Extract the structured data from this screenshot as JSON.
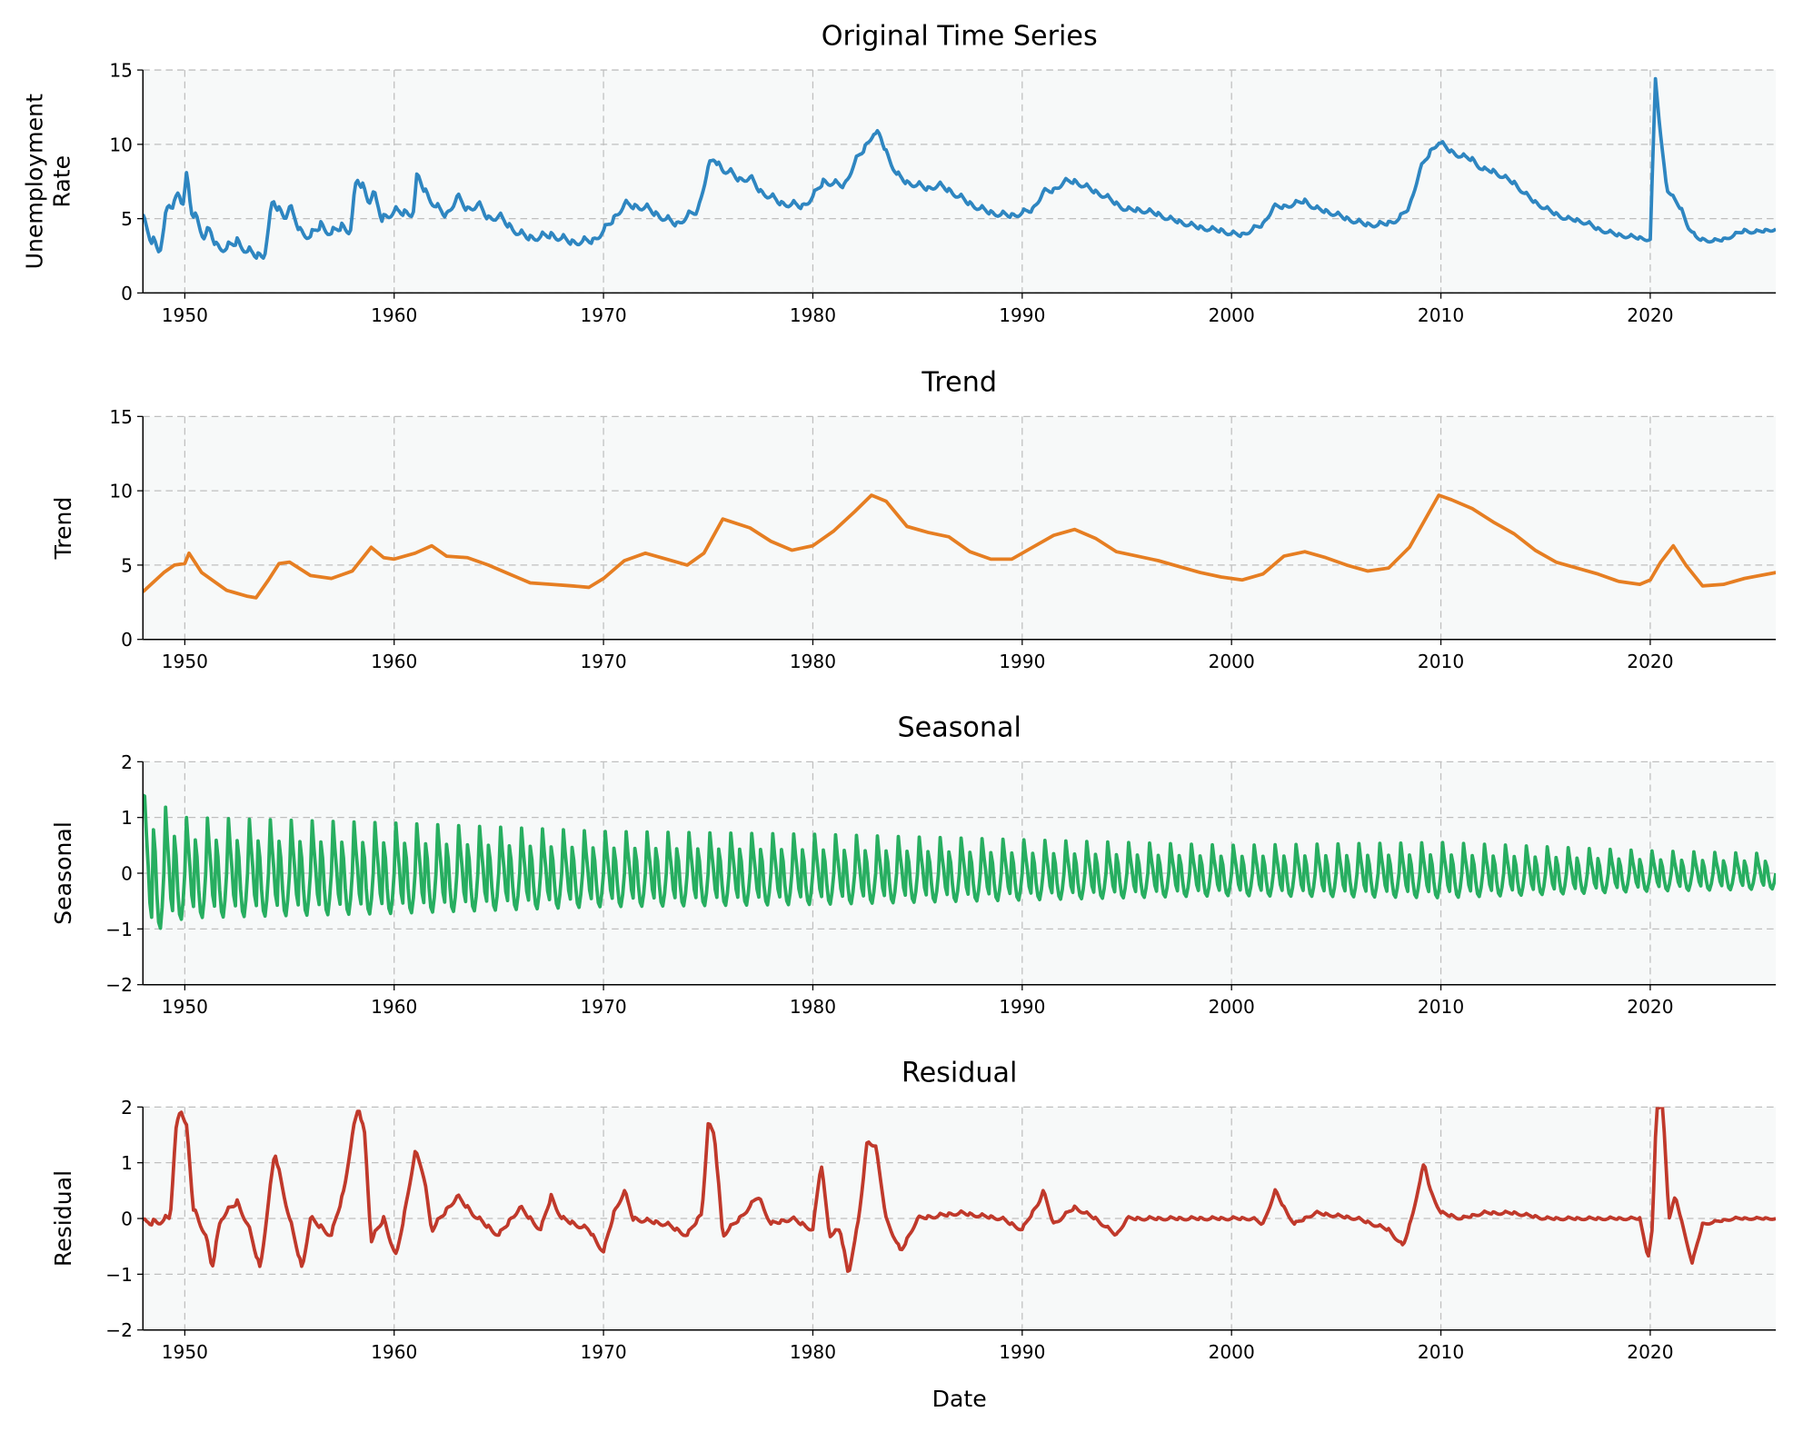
{
  "chart_data": [
    {
      "type": "line",
      "title": "Original Time Series",
      "xlabel": "",
      "ylabel": "Unemployment\nRate",
      "xlim": [
        1948,
        2026
      ],
      "ylim": [
        0,
        15
      ],
      "yticks": [
        0,
        5,
        10,
        15
      ],
      "xticks": [
        1950,
        1960,
        1970,
        1980,
        1990,
        2000,
        2010,
        2020
      ],
      "grid": true,
      "color": "#2e86c1",
      "x": [
        1948.0,
        1948.3,
        1948.8,
        1949.2,
        1949.5,
        1949.7,
        1949.9,
        1950.1,
        1950.3,
        1950.6,
        1950.9,
        1951.2,
        1951.5,
        1952,
        1952.5,
        1953,
        1953.5,
        1953.8,
        1954.2,
        1954.5,
        1954.8,
        1955,
        1955.5,
        1956,
        1956.5,
        1957,
        1957.5,
        1957.9,
        1958.2,
        1958.5,
        1958.8,
        1959,
        1959.4,
        1960,
        1960.5,
        1960.9,
        1961.1,
        1961.5,
        1962,
        1962.5,
        1963,
        1963.5,
        1964,
        1964.5,
        1965,
        1965.5,
        1966,
        1966.5,
        1967,
        1967.5,
        1968,
        1968.5,
        1969,
        1969.5,
        1970,
        1970.5,
        1971,
        1971.5,
        1972,
        1972.5,
        1973,
        1973.5,
        1974,
        1974.5,
        1975,
        1975.3,
        1975.7,
        1976,
        1976.5,
        1977,
        1977.5,
        1978,
        1978.5,
        1979,
        1979.5,
        1980,
        1980.5,
        1981,
        1981.5,
        1982,
        1982.5,
        1982.9,
        1983.2,
        1983.5,
        1984,
        1984.5,
        1985,
        1985.5,
        1986,
        1986.5,
        1987,
        1987.5,
        1988,
        1988.5,
        1989,
        1989.5,
        1990,
        1990.5,
        1991,
        1991.5,
        1992,
        1992.5,
        1993,
        1993.5,
        1994,
        1994.5,
        1995,
        1995.5,
        1996,
        1996.5,
        1997,
        1997.5,
        1998,
        1998.5,
        1999,
        1999.5,
        2000,
        2000.5,
        2001,
        2001.5,
        2002,
        2002.5,
        2003,
        2003.5,
        2004,
        2004.5,
        2005,
        2005.5,
        2006,
        2006.5,
        2007,
        2007.5,
        2008,
        2008.5,
        2009,
        2009.5,
        2009.9,
        2010.5,
        2011,
        2011.5,
        2012,
        2012.5,
        2013,
        2013.5,
        2014,
        2014.5,
        2015,
        2015.5,
        2016,
        2016.5,
        2017,
        2017.5,
        2018,
        2018.5,
        2019,
        2019.5,
        2020.0,
        2020.25,
        2020.5,
        2020.8,
        2021.2,
        2021.5,
        2021.8,
        2022.2,
        2022.5,
        2023,
        2023.5,
        2024,
        2024.5,
        2025,
        2025.5,
        2026
      ],
      "y": [
        4.8,
        3.8,
        3.0,
        5.8,
        6.0,
        7.0,
        6.0,
        7.9,
        5.5,
        5.0,
        3.8,
        4.2,
        3.2,
        3.0,
        3.5,
        2.8,
        2.5,
        2.6,
        6.2,
        5.6,
        5.2,
        5.8,
        4.2,
        3.8,
        4.6,
        4.0,
        4.5,
        4.2,
        7.6,
        7.2,
        6.2,
        6.8,
        5.0,
        5.5,
        5.4,
        5.4,
        7.9,
        6.8,
        5.8,
        5.2,
        6.5,
        5.6,
        6.0,
        5.0,
        5.2,
        4.5,
        4.0,
        3.7,
        3.8,
        3.9,
        3.7,
        3.4,
        3.5,
        3.5,
        4.2,
        5.0,
        6.0,
        5.8,
        5.8,
        5.3,
        5.0,
        4.6,
        5.2,
        5.5,
        8.5,
        9.0,
        8.3,
        8.2,
        7.6,
        7.8,
        6.8,
        6.5,
        6.0,
        6.0,
        5.8,
        6.5,
        7.5,
        7.4,
        7.2,
        8.8,
        9.8,
        10.8,
        10.6,
        9.5,
        8.0,
        7.4,
        7.3,
        7.0,
        7.3,
        6.9,
        6.5,
        6.0,
        5.7,
        5.4,
        5.3,
        5.2,
        5.4,
        5.6,
        6.8,
        6.9,
        7.5,
        7.5,
        7.2,
        6.8,
        6.5,
        6.0,
        5.6,
        5.6,
        5.5,
        5.3,
        5.0,
        4.8,
        4.6,
        4.4,
        4.3,
        4.2,
        4.0,
        3.9,
        4.3,
        4.6,
        5.8,
        5.8,
        6.0,
        6.2,
        5.7,
        5.5,
        5.3,
        5.0,
        4.8,
        4.6,
        4.6,
        4.7,
        5.0,
        5.8,
        8.3,
        9.5,
        10.2,
        9.5,
        9.2,
        9.0,
        8.3,
        8.2,
        7.8,
        7.4,
        6.7,
        6.1,
        5.7,
        5.3,
        5.0,
        4.9,
        4.7,
        4.3,
        4.1,
        3.9,
        3.8,
        3.7,
        3.6,
        14.4,
        10.5,
        7.0,
        6.2,
        5.6,
        4.5,
        3.7,
        3.6,
        3.5,
        3.6,
        3.9,
        4.2,
        4.1,
        4.2,
        4.3
      ]
    },
    {
      "type": "line",
      "title": "Trend",
      "ylabel": "Trend",
      "xlim": [
        1948,
        2026
      ],
      "ylim": [
        0,
        15
      ],
      "yticks": [
        0,
        5,
        10,
        15
      ],
      "xticks": [
        1950,
        1960,
        1970,
        1980,
        1990,
        2000,
        2010,
        2020
      ],
      "grid": true,
      "color": "#e67e22",
      "x": [
        1948,
        1949,
        1949.5,
        1950,
        1950.2,
        1950.8,
        1951.5,
        1952,
        1953,
        1953.4,
        1954,
        1954.5,
        1955,
        1956,
        1957,
        1958,
        1958.9,
        1959.5,
        1960,
        1961,
        1961.8,
        1962.5,
        1963.5,
        1964.5,
        1965.5,
        1966.5,
        1967.5,
        1968.5,
        1969.3,
        1970,
        1971,
        1972,
        1973,
        1974,
        1974.8,
        1975.7,
        1977,
        1978,
        1979,
        1980,
        1981,
        1982,
        1982.8,
        1983.5,
        1984.5,
        1985.5,
        1986.5,
        1987.5,
        1988.5,
        1989.5,
        1990.5,
        1991.5,
        1992.5,
        1993.5,
        1994.5,
        1995.5,
        1996.5,
        1997.5,
        1998.5,
        1999.5,
        2000.5,
        2001.5,
        2002.5,
        2003.5,
        2004.5,
        2005.5,
        2006.5,
        2007.5,
        2008.5,
        2009.9,
        2010.5,
        2011.5,
        2012.5,
        2013.5,
        2014.5,
        2015.5,
        2016.5,
        2017.5,
        2018.5,
        2019.5,
        2020,
        2020.5,
        2021.1,
        2021.7,
        2022.5,
        2023.5,
        2024.5,
        2026
      ],
      "y": [
        3.2,
        4.5,
        5.0,
        5.1,
        5.8,
        4.5,
        3.8,
        3.3,
        2.9,
        2.8,
        4.0,
        5.1,
        5.2,
        4.3,
        4.1,
        4.6,
        6.2,
        5.5,
        5.4,
        5.8,
        6.3,
        5.6,
        5.5,
        5.0,
        4.4,
        3.8,
        3.7,
        3.6,
        3.5,
        4.1,
        5.3,
        5.8,
        5.4,
        5.0,
        5.8,
        8.1,
        7.5,
        6.6,
        6.0,
        6.3,
        7.3,
        8.6,
        9.7,
        9.3,
        7.6,
        7.2,
        6.9,
        5.9,
        5.4,
        5.4,
        6.2,
        7.0,
        7.4,
        6.8,
        5.9,
        5.6,
        5.3,
        4.9,
        4.5,
        4.2,
        4.0,
        4.4,
        5.6,
        5.9,
        5.5,
        5.0,
        4.6,
        4.8,
        6.2,
        9.7,
        9.4,
        8.8,
        7.9,
        7.1,
        6.0,
        5.2,
        4.8,
        4.4,
        3.9,
        3.7,
        4.0,
        5.2,
        6.3,
        5.0,
        3.6,
        3.7,
        4.1,
        4.5
      ]
    },
    {
      "type": "line",
      "title": "Seasonal",
      "ylabel": "Seasonal",
      "xlim": [
        1948,
        2026
      ],
      "ylim": [
        -2,
        2
      ],
      "yticks": [
        -2,
        -1,
        0,
        1,
        2
      ],
      "xticks": [
        1950,
        1960,
        1970,
        1980,
        1990,
        2000,
        2010,
        2020
      ],
      "grid": true,
      "color": "#27ae60",
      "monthly_pattern": [
        1.0,
        0.5,
        0.1,
        -0.4,
        -0.6,
        0.6,
        0.3,
        -0.3,
        -0.7,
        -0.8,
        -0.5,
        0.0
      ],
      "amplitude_years": [
        1948,
        1950,
        1960,
        1970,
        1980,
        1990,
        2000,
        2010,
        2020,
        2026
      ],
      "amplitude": [
        1.4,
        1.0,
        0.9,
        0.75,
        0.7,
        0.6,
        0.5,
        0.55,
        0.4,
        0.35
      ]
    },
    {
      "type": "line",
      "title": "Residual",
      "xlabel": "Date",
      "ylabel": "Residual",
      "xlim": [
        1948,
        2026
      ],
      "ylim": [
        -2,
        2
      ],
      "yticks": [
        -2,
        -1,
        0,
        1,
        2
      ],
      "xticks": [
        1950,
        1960,
        1970,
        1980,
        1990,
        2000,
        2010,
        2020
      ],
      "grid": true,
      "color": "#c0392b",
      "x": [
        1948,
        1949.3,
        1949.6,
        1949.8,
        1950.1,
        1950.4,
        1951,
        1951.3,
        1951.7,
        1952.5,
        1953,
        1953.6,
        1954.0,
        1954.3,
        1954.7,
        1955,
        1955.6,
        1956,
        1957,
        1957.6,
        1958,
        1958.3,
        1958.6,
        1958.9,
        1959.5,
        1960.1,
        1960.5,
        1961,
        1961.4,
        1961.8,
        1963,
        1964,
        1965,
        1966,
        1967,
        1967.5,
        1968,
        1969.3,
        1970,
        1970.5,
        1971,
        1971.4,
        1973,
        1974,
        1974.7,
        1975,
        1975.3,
        1975.7,
        1976.5,
        1977.4,
        1978,
        1979,
        1980,
        1980.4,
        1980.8,
        1981.3,
        1981.7,
        1982.2,
        1982.6,
        1983,
        1983.5,
        1984.2,
        1985,
        1987,
        1989,
        1990,
        1990.8,
        1991,
        1991.5,
        1992.5,
        1993.5,
        1994.5,
        1995,
        1997,
        1999,
        2001,
        2001.5,
        2002.1,
        2002.5,
        2003,
        2004,
        2006,
        2007.5,
        2008.2,
        2008.6,
        2009.2,
        2009.5,
        2010,
        2011,
        2012,
        2013.5,
        2015,
        2017,
        2019.5,
        2019.9,
        2020.1,
        2020.3,
        2020.6,
        2020.9,
        2021.2,
        2021.6,
        2022.0,
        2022.5,
        2024,
        2026
      ],
      "y": [
        -0.1,
        0.0,
        1.7,
        2.0,
        1.6,
        0.2,
        -0.3,
        -0.9,
        0.0,
        0.3,
        -0.1,
        -0.9,
        0.3,
        1.2,
        0.5,
        0.0,
        -0.9,
        0.0,
        -0.3,
        0.5,
        1.5,
        2.0,
        1.5,
        -0.4,
        0.0,
        -0.7,
        0.1,
        1.2,
        0.8,
        -0.2,
        0.4,
        0.0,
        -0.3,
        0.2,
        -0.2,
        0.4,
        0.0,
        -0.2,
        -0.6,
        0.1,
        0.5,
        0.0,
        -0.1,
        -0.3,
        0.1,
        1.7,
        1.5,
        -0.3,
        0.0,
        0.4,
        -0.1,
        0.0,
        -0.2,
        1.0,
        -0.3,
        -0.2,
        -1.0,
        0.0,
        1.4,
        1.3,
        0.0,
        -0.6,
        0.0,
        0.1,
        0.0,
        -0.2,
        0.3,
        0.5,
        -0.1,
        0.2,
        0.0,
        -0.3,
        0.0,
        0.0,
        0.0,
        0.0,
        -0.1,
        0.5,
        0.2,
        -0.1,
        0.1,
        0.0,
        -0.2,
        -0.5,
        0.0,
        1.0,
        0.5,
        0.1,
        0.0,
        0.1,
        0.1,
        0.0,
        0.0,
        0.0,
        -0.7,
        -0.2,
        2.0,
        2.0,
        0.0,
        0.4,
        -0.2,
        -0.8,
        -0.1,
        0.0,
        0.0
      ]
    }
  ],
  "colors": {
    "plot_background": "#f7f9f9",
    "grid": "#bfbfbf"
  }
}
